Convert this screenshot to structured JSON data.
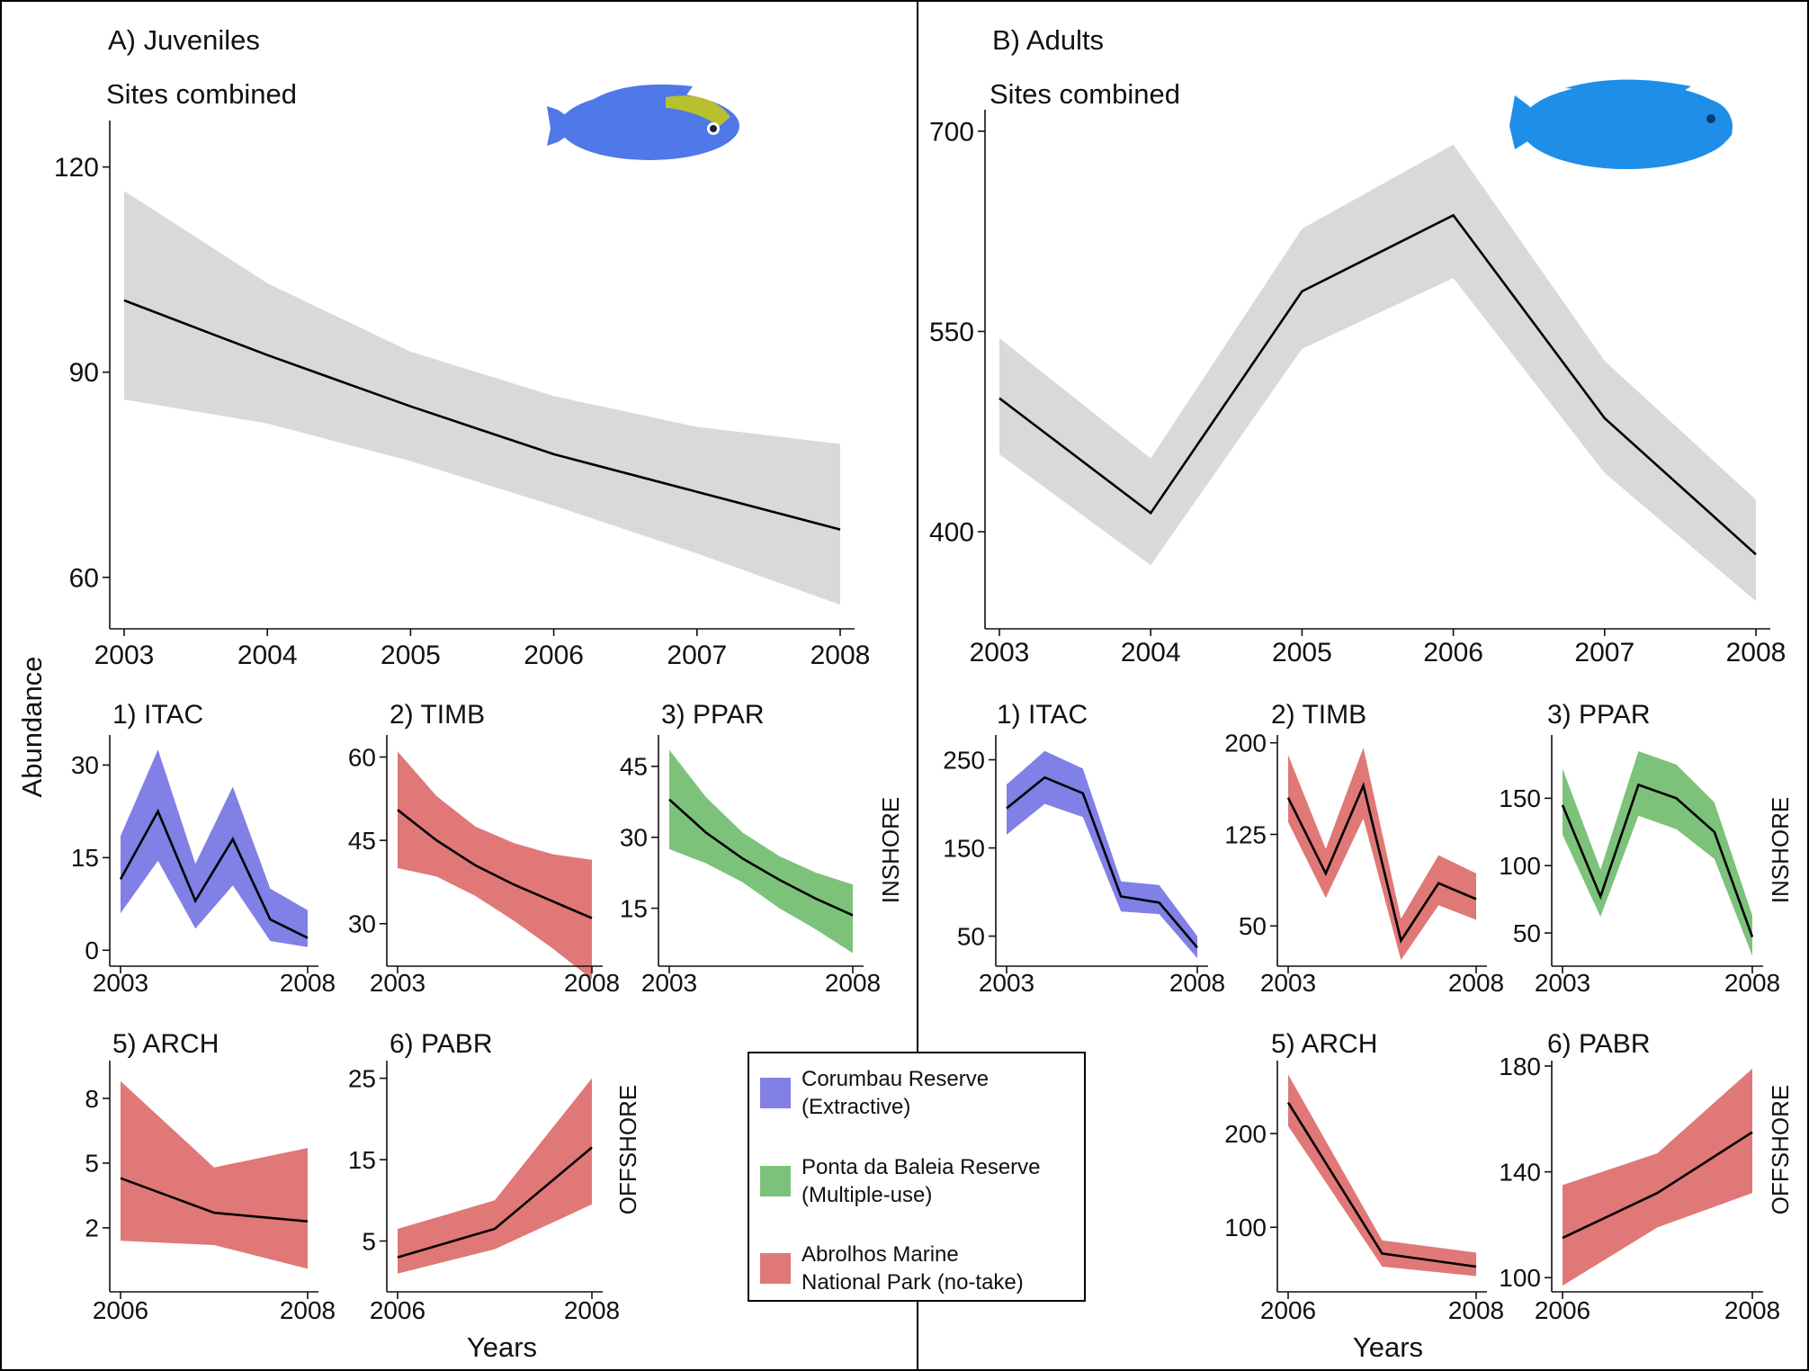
{
  "colors": {
    "combined_band": "#d9d9d9",
    "extractive": "#8080e6",
    "multiple_use": "#7dc27a",
    "no_take": "#e07878",
    "fish_juvenile": "#4f78e8",
    "fish_juvenile_head": "#b8c02e",
    "fish_adult": "#1e8ee8"
  },
  "labels": {
    "ylabel": "Abundance",
    "xlabel": "Years",
    "inshore": "INSHORE",
    "offshore": "OFFSHORE"
  },
  "legend": {
    "items": [
      {
        "line1": "Corumbau Reserve",
        "line2": "(Extractive)",
        "color_key": "extractive"
      },
      {
        "line1": "Ponta da Baleia Reserve",
        "line2": "(Multiple-use)",
        "color_key": "multiple_use"
      },
      {
        "line1": "Abrolhos Marine",
        "line2": "National Park (no-take)",
        "color_key": "no_take"
      }
    ]
  },
  "fish_icons": [
    {
      "name": "juvenile-parrotfish-icon",
      "panel": "A"
    },
    {
      "name": "adult-parrotfish-icon",
      "panel": "B"
    }
  ],
  "chart_data": [
    {
      "id": "A",
      "type": "area",
      "title": "A) Juveniles",
      "subtitle": "Sites combined",
      "color_key": "combined_band",
      "x": [
        2003,
        2004,
        2005,
        2006,
        2007,
        2008
      ],
      "xticks": [
        "2003",
        "2004",
        "2005",
        "2006",
        "2007",
        "2008"
      ],
      "mean": [
        100.5,
        92.5,
        85,
        78,
        72.5,
        67
      ],
      "lower": [
        86,
        82.5,
        77,
        70.5,
        63.5,
        56
      ],
      "upper": [
        116.5,
        103,
        93,
        86.5,
        82,
        79.5
      ],
      "xlim": [
        2003,
        2008
      ],
      "ylim": [
        53,
        126
      ],
      "yticks": [
        60,
        90,
        120
      ]
    },
    {
      "id": "B",
      "type": "area",
      "title": "B) Adults",
      "subtitle": "Sites combined",
      "color_key": "combined_band",
      "x": [
        2003,
        2004,
        2005,
        2006,
        2007,
        2008
      ],
      "xticks": [
        "2003",
        "2004",
        "2005",
        "2006",
        "2007",
        "2008"
      ],
      "mean": [
        500,
        414,
        580,
        637,
        485,
        383
      ],
      "lower": [
        458,
        375,
        537,
        590,
        444,
        348
      ],
      "upper": [
        545,
        455,
        627,
        690,
        528,
        424
      ],
      "xlim": [
        2003,
        2008
      ],
      "ylim": [
        330,
        712
      ],
      "yticks": [
        400,
        550,
        700
      ]
    },
    {
      "id": "A1",
      "type": "area",
      "title": "1) ITAC",
      "color_key": "extractive",
      "x": [
        2003,
        2004,
        2005,
        2006,
        2007,
        2008
      ],
      "xticks": [
        "2003",
        "2008"
      ],
      "mean": [
        11.5,
        22.5,
        8,
        18,
        5,
        2
      ],
      "lower": [
        6,
        14.5,
        3.5,
        10.5,
        1.5,
        0.5
      ],
      "upper": [
        18.5,
        32.5,
        14,
        26.5,
        10,
        6.5
      ],
      "xlim": [
        2003,
        2008
      ],
      "ylim": [
        -2,
        34
      ],
      "yticks": [
        0,
        15,
        30
      ]
    },
    {
      "id": "A2",
      "type": "area",
      "title": "2) TIMB",
      "color_key": "no_take",
      "x": [
        2003,
        2004,
        2005,
        2006,
        2007,
        2008
      ],
      "xticks": [
        "2003",
        "2008"
      ],
      "mean": [
        50.5,
        45,
        40.5,
        37,
        34,
        31
      ],
      "lower": [
        40,
        38.5,
        35,
        30.5,
        25.5,
        20
      ],
      "upper": [
        61,
        53,
        47.5,
        44.5,
        42.5,
        41.5
      ],
      "xlim": [
        2003,
        2008
      ],
      "ylim": [
        23,
        63
      ],
      "yticks": [
        30,
        45,
        60
      ]
    },
    {
      "id": "A3",
      "type": "area",
      "title": "3) PPAR",
      "color_key": "multiple_use",
      "x": [
        2003,
        2004,
        2005,
        2006,
        2007,
        2008
      ],
      "xticks": [
        "2003",
        "2008"
      ],
      "mean": [
        38,
        31,
        25.5,
        21,
        17,
        13.5
      ],
      "lower": [
        27.5,
        24.5,
        20.5,
        15,
        10.5,
        5.5
      ],
      "upper": [
        48.5,
        38.5,
        31,
        26,
        22.5,
        20
      ],
      "xlim": [
        2003,
        2008
      ],
      "ylim": [
        3.5,
        50.5
      ],
      "yticks": [
        15,
        30,
        45
      ]
    },
    {
      "id": "A5",
      "type": "area",
      "title": "5) ARCH",
      "color_key": "no_take",
      "x": [
        2006,
        2007,
        2008
      ],
      "xticks": [
        "2006",
        "2008"
      ],
      "mean": [
        4.3,
        2.7,
        2.3
      ],
      "lower": [
        1.4,
        1.2,
        0.1
      ],
      "upper": [
        8.8,
        4.8,
        5.7
      ],
      "xlim": [
        2006,
        2008
      ],
      "ylim": [
        -0.8,
        9.5
      ],
      "yticks": [
        2,
        5,
        8
      ]
    },
    {
      "id": "A6",
      "type": "area",
      "title": "6) PABR",
      "color_key": "no_take",
      "x": [
        2006,
        2007,
        2008
      ],
      "xticks": [
        "2006",
        "2008"
      ],
      "mean": [
        3,
        6.5,
        16.5
      ],
      "lower": [
        1,
        4,
        9.5
      ],
      "upper": [
        6.5,
        10,
        25
      ],
      "xlim": [
        2006,
        2008
      ],
      "ylim": [
        -0.8,
        26.5
      ],
      "yticks": [
        5,
        15,
        25
      ]
    },
    {
      "id": "B1",
      "type": "area",
      "title": "1) ITAC",
      "color_key": "extractive",
      "x": [
        2003,
        2004,
        2005,
        2006,
        2007,
        2008
      ],
      "xticks": [
        "2003",
        "2008"
      ],
      "mean": [
        195,
        230,
        212,
        95,
        88,
        37
      ],
      "lower": [
        165,
        200,
        185,
        78,
        75,
        25
      ],
      "upper": [
        222,
        260,
        240,
        112,
        108,
        50
      ],
      "xlim": [
        2003,
        2008
      ],
      "ylim": [
        20,
        272
      ],
      "yticks": [
        50,
        150,
        250
      ]
    },
    {
      "id": "B2",
      "type": "area",
      "title": "2) TIMB",
      "color_key": "no_take",
      "x": [
        2003,
        2004,
        2005,
        2006,
        2007,
        2008
      ],
      "xticks": [
        "2003",
        "2008"
      ],
      "mean": [
        155,
        93,
        165,
        38,
        85,
        72
      ],
      "lower": [
        135,
        73,
        138,
        22,
        67,
        55
      ],
      "upper": [
        190,
        113,
        196,
        56,
        108,
        93
      ],
      "xlim": [
        2003,
        2008
      ],
      "ylim": [
        20,
        202
      ],
      "yticks": [
        50,
        125,
        200
      ]
    },
    {
      "id": "B3",
      "type": "area",
      "title": "3) PPAR",
      "color_key": "multiple_use",
      "x": [
        2003,
        2004,
        2005,
        2006,
        2007,
        2008
      ],
      "xticks": [
        "2003",
        "2008"
      ],
      "mean": [
        145,
        77,
        160,
        150,
        125,
        47
      ],
      "lower": [
        123,
        62,
        137,
        127,
        105,
        33
      ],
      "upper": [
        172,
        97,
        185,
        175,
        147,
        63
      ],
      "xlim": [
        2003,
        2008
      ],
      "ylim": [
        28,
        193
      ],
      "yticks": [
        50,
        100,
        150
      ]
    },
    {
      "id": "B5",
      "type": "area",
      "title": "5) ARCH",
      "color_key": "no_take",
      "x": [
        2006,
        2007,
        2008
      ],
      "xticks": [
        "2006",
        "2008"
      ],
      "mean": [
        233,
        72,
        58
      ],
      "lower": [
        208,
        58,
        48
      ],
      "upper": [
        263,
        86,
        73
      ],
      "xlim": [
        2006,
        2008
      ],
      "ylim": [
        35,
        272
      ],
      "yticks": [
        100,
        200
      ]
    },
    {
      "id": "B6",
      "type": "area",
      "title": "6) PABR",
      "color_key": "no_take",
      "x": [
        2006,
        2007,
        2008
      ],
      "xticks": [
        "2006",
        "2008"
      ],
      "mean": [
        115,
        132,
        155
      ],
      "lower": [
        97,
        119,
        132
      ],
      "upper": [
        135,
        147,
        179
      ],
      "xlim": [
        2006,
        2008
      ],
      "ylim": [
        96,
        180
      ],
      "yticks": [
        100,
        140,
        180
      ]
    }
  ]
}
